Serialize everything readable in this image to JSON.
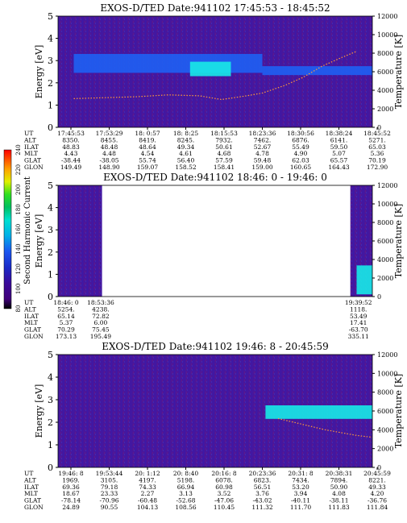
{
  "chart_data": [
    {
      "type": "heatmap",
      "title": "EXOS-D/TED   Date:941102  17:45:53 - 18:45:52",
      "ylabel": "Energy [eV]",
      "y2label": "Temperature [K]",
      "ylim": [
        0,
        5
      ],
      "y2lim": [
        0,
        12000
      ],
      "yticks": [
        "0",
        "1",
        "2",
        "3",
        "4",
        "5"
      ],
      "y2ticks": [
        "0",
        "2000",
        "4000",
        "6000",
        "8000",
        "10000",
        "12000"
      ],
      "row_labels": [
        "UT",
        "ALT",
        "ILAT",
        "MLT",
        "GLAT",
        "GLON"
      ],
      "columns": [
        [
          "17:45:53",
          "8350.",
          "48.83",
          "4.43",
          "-38.44",
          "149.49"
        ],
        [
          "17:53:29",
          "8455.",
          "48.48",
          "4.48",
          "-38.05",
          "148.90"
        ],
        [
          "18: 0:57",
          "8419.",
          "48.64",
          "4.54",
          "55.74",
          "159.07"
        ],
        [
          "18: 8:25",
          "8245.",
          "49.34",
          "4.61",
          "56.40",
          "158.52"
        ],
        [
          "18:15:53",
          "7932.",
          "50.61",
          "4.68",
          "57.59",
          "158.41"
        ],
        [
          "18:23:36",
          "7462.",
          "52.67",
          "4.78",
          "59.48",
          "159.00"
        ],
        [
          "18:30:56",
          "6876.",
          "55.49",
          "4.90",
          "62.03",
          "160.65"
        ],
        [
          "18:38:24",
          "6141.",
          "59.50",
          "5.07",
          "65.57",
          "164.43"
        ],
        [
          "18:45:52",
          "5271.",
          "65.03",
          "5.36",
          "70.19",
          "172.90"
        ]
      ],
      "bands": [
        {
          "x0": 0.05,
          "x1": 0.65,
          "e0": 2.45,
          "e1": 3.3,
          "level": "medium-blue"
        },
        {
          "x0": 0.42,
          "x1": 0.55,
          "e0": 2.3,
          "e1": 2.95,
          "level": "high-cyan"
        },
        {
          "x0": 0.65,
          "x1": 1.0,
          "e0": 2.35,
          "e1": 2.75,
          "level": "medium-blue"
        }
      ],
      "temperature_trace": [
        [
          0.05,
          3100
        ],
        [
          0.15,
          3200
        ],
        [
          0.25,
          3300
        ],
        [
          0.35,
          3500
        ],
        [
          0.45,
          3400
        ],
        [
          0.52,
          3000
        ],
        [
          0.6,
          3400
        ],
        [
          0.65,
          3700
        ],
        [
          0.72,
          4500
        ],
        [
          0.78,
          5400
        ],
        [
          0.84,
          6600
        ],
        [
          0.9,
          7500
        ],
        [
          0.95,
          8200
        ]
      ]
    },
    {
      "type": "heatmap",
      "title": "EXOS-D/TED   Date:941102  18:46: 0 - 19:46: 0",
      "ylabel": "Energy [eV]",
      "y2label": "Temperature [K]",
      "ylim": [
        0,
        5
      ],
      "y2lim": [
        0,
        12000
      ],
      "yticks": [
        "0",
        "1",
        "2",
        "3",
        "4",
        "5"
      ],
      "y2ticks": [
        "0",
        "2000",
        "4000",
        "6000",
        "8000",
        "10000",
        "12000"
      ],
      "colorbar": {
        "label": "Second Harmonic Current",
        "range": [
          80,
          240
        ],
        "ticks": [
          "80",
          "100",
          "120",
          "140",
          "160",
          "180",
          "200",
          "220",
          "240"
        ]
      },
      "row_labels": [
        "UT",
        "ALT",
        "ILAT",
        "MLT",
        "GLAT",
        "GLON"
      ],
      "columns": [
        [
          "18:46: 0",
          "5254.",
          "65.14",
          "5.37",
          "70.29",
          "173.13"
        ],
        [
          "18:53:36",
          "4238.",
          "72.82",
          "6.00",
          "75.45",
          "195.49"
        ],
        [
          "19:39:52",
          "1118.",
          "53.49",
          "17.41",
          "-63.70",
          "335.11"
        ]
      ],
      "data_segments": [
        [
          0,
          0.14
        ],
        [
          0.93,
          1.0
        ]
      ],
      "bands": [
        {
          "x0": 0.95,
          "x1": 1.0,
          "e0": 0.1,
          "e1": 1.4,
          "level": "high-cyan"
        }
      ]
    },
    {
      "type": "heatmap",
      "title": "EXOS-D/TED   Date:941102  19:46: 8 - 20:45:59",
      "ylabel": "Energy [eV]",
      "y2label": "Temperature [K]",
      "ylim": [
        0,
        5
      ],
      "y2lim": [
        0,
        12000
      ],
      "yticks": [
        "0",
        "1",
        "2",
        "3",
        "4",
        "5"
      ],
      "y2ticks": [
        "0",
        "2000",
        "4000",
        "6000",
        "8000",
        "10000",
        "12000"
      ],
      "row_labels": [
        "UT",
        "ALT",
        "ILAT",
        "MLT",
        "GLAT",
        "GLON"
      ],
      "columns": [
        [
          "19:46: 8",
          "1969.",
          "69.36",
          "18.67",
          "-78.14",
          "24.89"
        ],
        [
          "19:53:44",
          "3105.",
          "79.18",
          "23.33",
          "-70.96",
          "90.55"
        ],
        [
          "20: 1:12",
          "4197.",
          "74.33",
          "2.27",
          "-60.48",
          "104.13"
        ],
        [
          "20: 8:40",
          "5198.",
          "66.94",
          "3.13",
          "-52.68",
          "108.56"
        ],
        [
          "20:16: 8",
          "6078.",
          "60.98",
          "3.52",
          "-47.06",
          "110.45"
        ],
        [
          "20:23:36",
          "6823.",
          "56.51",
          "3.76",
          "-43.02",
          "111.32"
        ],
        [
          "20:31: 8",
          "7434.",
          "53.20",
          "3.94",
          "-40.11",
          "111.70"
        ],
        [
          "20:38:31",
          "7894.",
          "50.90",
          "4.08",
          "-38.11",
          "111.83"
        ],
        [
          "20:45:59",
          "8221.",
          "49.33",
          "4.20",
          "-36.76",
          "111.84"
        ]
      ],
      "bands": [
        {
          "x0": 0.66,
          "x1": 1.0,
          "e0": 2.15,
          "e1": 2.75,
          "level": "high-cyan"
        }
      ],
      "temperature_trace": [
        [
          0.7,
          5200
        ],
        [
          0.75,
          4800
        ],
        [
          0.8,
          4400
        ],
        [
          0.85,
          4000
        ],
        [
          0.9,
          3700
        ],
        [
          0.95,
          3400
        ],
        [
          1.0,
          3200
        ]
      ]
    }
  ]
}
